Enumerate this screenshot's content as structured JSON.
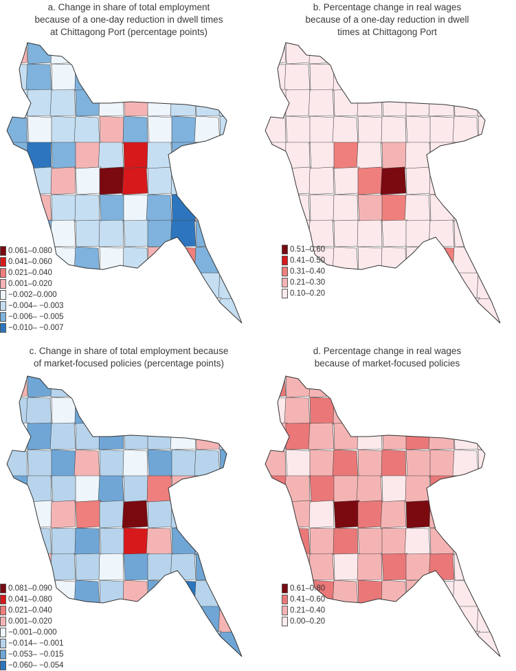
{
  "panels": {
    "a": {
      "title_lines": [
        "a. Change in share of total employment",
        "because of a one-day reduction in dwell times",
        "at Chittagong Port (percentage points)"
      ],
      "legend": [
        {
          "label": "0.061–0.080",
          "color": "#7a0a10"
        },
        {
          "label": "0.041–0.060",
          "color": "#d7191c"
        },
        {
          "label": "0.021–0.040",
          "color": "#ef7f7c"
        },
        {
          "label": "0.001–0.020",
          "color": "#f5b4b4"
        },
        {
          "label": "−0.002–0.000",
          "color": "#eef5fb"
        },
        {
          "label": "−0.004– −0.003",
          "color": "#c6def1"
        },
        {
          "label": "−0.006– −0.005",
          "color": "#7fb2dc"
        },
        {
          "label": "−0.010– −0.007",
          "color": "#2d76bf"
        }
      ]
    },
    "b": {
      "title_lines": [
        "b. Percentage change in real wages",
        "because of a one-day reduction in dwell",
        "times at Chittagong Port"
      ],
      "legend": [
        {
          "label": "0.51–0.60",
          "color": "#7a0a10"
        },
        {
          "label": "0.41–0.50",
          "color": "#d7191c"
        },
        {
          "label": "0.31–0.40",
          "color": "#ef7f7c"
        },
        {
          "label": "0.21–0.30",
          "color": "#f5b4b4"
        },
        {
          "label": "0.10–0.20",
          "color": "#fbe9ec"
        }
      ]
    },
    "c": {
      "title_lines": [
        "c. Change in share of total employment because",
        "of market-focused policies (percentage points)"
      ],
      "legend": [
        {
          "label": "0.081–0.090",
          "color": "#7a0a10"
        },
        {
          "label": "0.041–0.080",
          "color": "#d7191c"
        },
        {
          "label": "0.021–0.040",
          "color": "#ef7f7c"
        },
        {
          "label": "0.001–0.020",
          "color": "#f5b4b4"
        },
        {
          "label": "−0.001–0.000",
          "color": "#eef5fb"
        },
        {
          "label": "−0.014– −0.001",
          "color": "#b7d4ec"
        },
        {
          "label": "−0.053– −0.015",
          "color": "#6fa6d6"
        },
        {
          "label": "−0.060– −0.054",
          "color": "#2d76bf"
        }
      ]
    },
    "d": {
      "title_lines": [
        "d. Percentage change in real wages",
        "because of market-focused policies"
      ],
      "legend": [
        {
          "label": "0.61–0.80",
          "color": "#7a0a10"
        },
        {
          "label": "0.41–0.60",
          "color": "#ea7878"
        },
        {
          "label": "0.21–0.40",
          "color": "#f5b4b4"
        },
        {
          "label": "0.00–0.20",
          "color": "#fbe9ec"
        }
      ]
    }
  }
}
